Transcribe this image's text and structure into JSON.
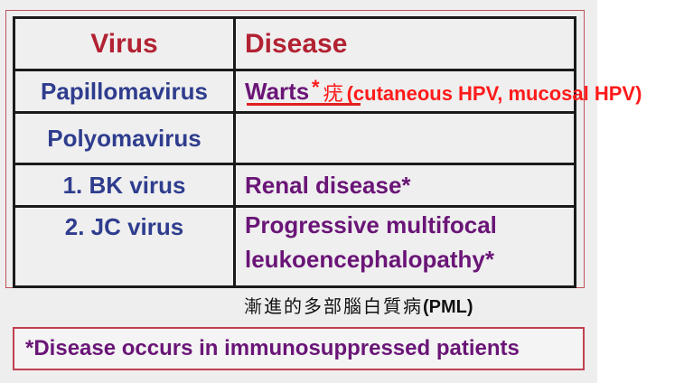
{
  "table": {
    "headers": {
      "virus": "Virus",
      "disease": "Disease"
    },
    "rows": [
      {
        "virus": "Papillomavirus",
        "disease": "Warts"
      },
      {
        "virus": "Polyomavirus",
        "disease": ""
      },
      {
        "virus": "1. BK virus",
        "disease": "Renal disease*"
      },
      {
        "virus": "2. JC virus",
        "disease": "Progressive multifocal leukoencephalopathy*"
      }
    ]
  },
  "annotations": {
    "warts_star": "*",
    "warts_chinese": "疣",
    "warts_types": "(cutaneous HPV, mucosal HPV)",
    "pml_chinese": "漸進的多部腦白質病",
    "pml_abbrev": "(PML)"
  },
  "footnote": "*Disease occurs in immunosuppressed patients",
  "colors": {
    "header_text": "#b22233",
    "virus_text": "#2f3d8e",
    "disease_text": "#6a1577",
    "annotation_red": "#ff1a1a",
    "frame_border": "#c0505a"
  }
}
